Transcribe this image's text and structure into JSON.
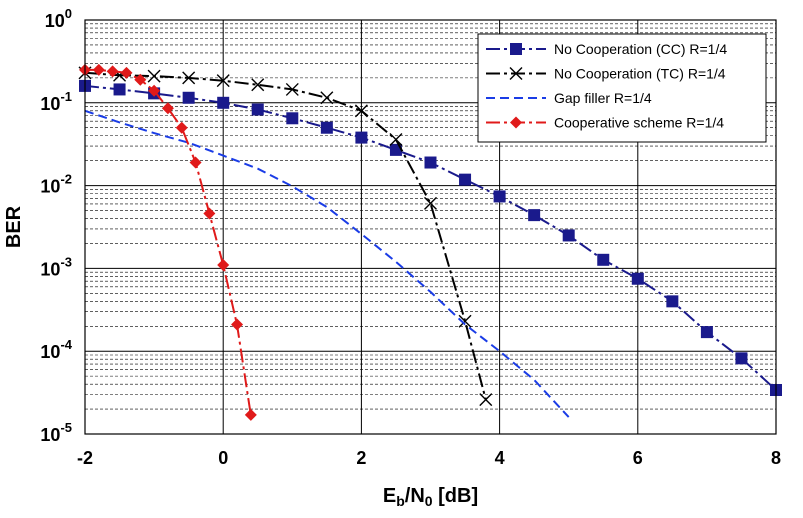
{
  "chart_data": {
    "type": "line",
    "xlabel": "E_b/N_0 [dB]",
    "xlabel_parts": {
      "main1": "E",
      "sub1": "b",
      "main2": "/N",
      "sub2": "0",
      "rest": " [dB]"
    },
    "ylabel": "BER",
    "xlim": [
      -2,
      8
    ],
    "ylim": [
      1e-05,
      1
    ],
    "yscale": "log",
    "x_ticks": [
      "-2",
      "0",
      "2",
      "4",
      "6",
      "8"
    ],
    "y_ticks": [
      {
        "base": "10",
        "exp": "0"
      },
      {
        "base": "10",
        "exp": "-1"
      },
      {
        "base": "10",
        "exp": "-2"
      },
      {
        "base": "10",
        "exp": "-3"
      },
      {
        "base": "10",
        "exp": "-4"
      },
      {
        "base": "10",
        "exp": "-5"
      }
    ],
    "grid": true,
    "legend_position": "top-right",
    "series": [
      {
        "name": "No Cooperation (CC) R=1/4",
        "color": "#1a1a8c",
        "dash": "dashdot",
        "marker": "square",
        "x": [
          -2,
          -1.5,
          -1,
          -0.5,
          0,
          0.5,
          1,
          1.5,
          2,
          2.5,
          3,
          3.5,
          4,
          4.5,
          5,
          5.5,
          6,
          6.5,
          7,
          7.5,
          8
        ],
        "y": [
          0.16,
          0.145,
          0.13,
          0.115,
          0.1,
          0.083,
          0.065,
          0.05,
          0.038,
          0.027,
          0.019,
          0.0118,
          0.0074,
          0.0044,
          0.0025,
          0.00127,
          0.00075,
          0.0004,
          0.00017,
          8.2e-05,
          3.4e-05
        ]
      },
      {
        "name": "No Cooperation (TC) R=1/4",
        "color": "#000000",
        "dash": "dashdot",
        "marker": "x",
        "x": [
          -2,
          -1.5,
          -1,
          -0.5,
          0,
          0.5,
          1,
          1.5,
          2,
          2.5,
          3,
          3.5,
          3.8
        ],
        "y": [
          0.23,
          0.215,
          0.21,
          0.2,
          0.185,
          0.165,
          0.145,
          0.115,
          0.08,
          0.036,
          0.0061,
          0.00023,
          2.6e-05
        ]
      },
      {
        "name": "Gap filler R=1/4",
        "color": "#1a3ce6",
        "dash": "dashed",
        "marker": "none",
        "x": [
          -2,
          -1.5,
          -1,
          -0.5,
          0,
          0.5,
          1,
          1.5,
          2,
          2.5,
          3,
          3.5,
          4,
          4.5,
          5
        ],
        "y": [
          0.08,
          0.058,
          0.043,
          0.033,
          0.023,
          0.016,
          0.0098,
          0.0055,
          0.0026,
          0.0012,
          0.00052,
          0.00021,
          0.0001,
          4.5e-05,
          1.6e-05
        ]
      },
      {
        "name": "Cooperative scheme R=1/4",
        "color": "#e01a1a",
        "dash": "dashdot",
        "marker": "diamond",
        "x": [
          -2,
          -1.8,
          -1.6,
          -1.4,
          -1.2,
          -1,
          -0.8,
          -0.6,
          -0.4,
          -0.2,
          0,
          0.2,
          0.4
        ],
        "y": [
          0.25,
          0.25,
          0.24,
          0.23,
          0.19,
          0.14,
          0.086,
          0.05,
          0.019,
          0.0046,
          0.0011,
          0.00021,
          1.7e-05
        ]
      }
    ]
  }
}
